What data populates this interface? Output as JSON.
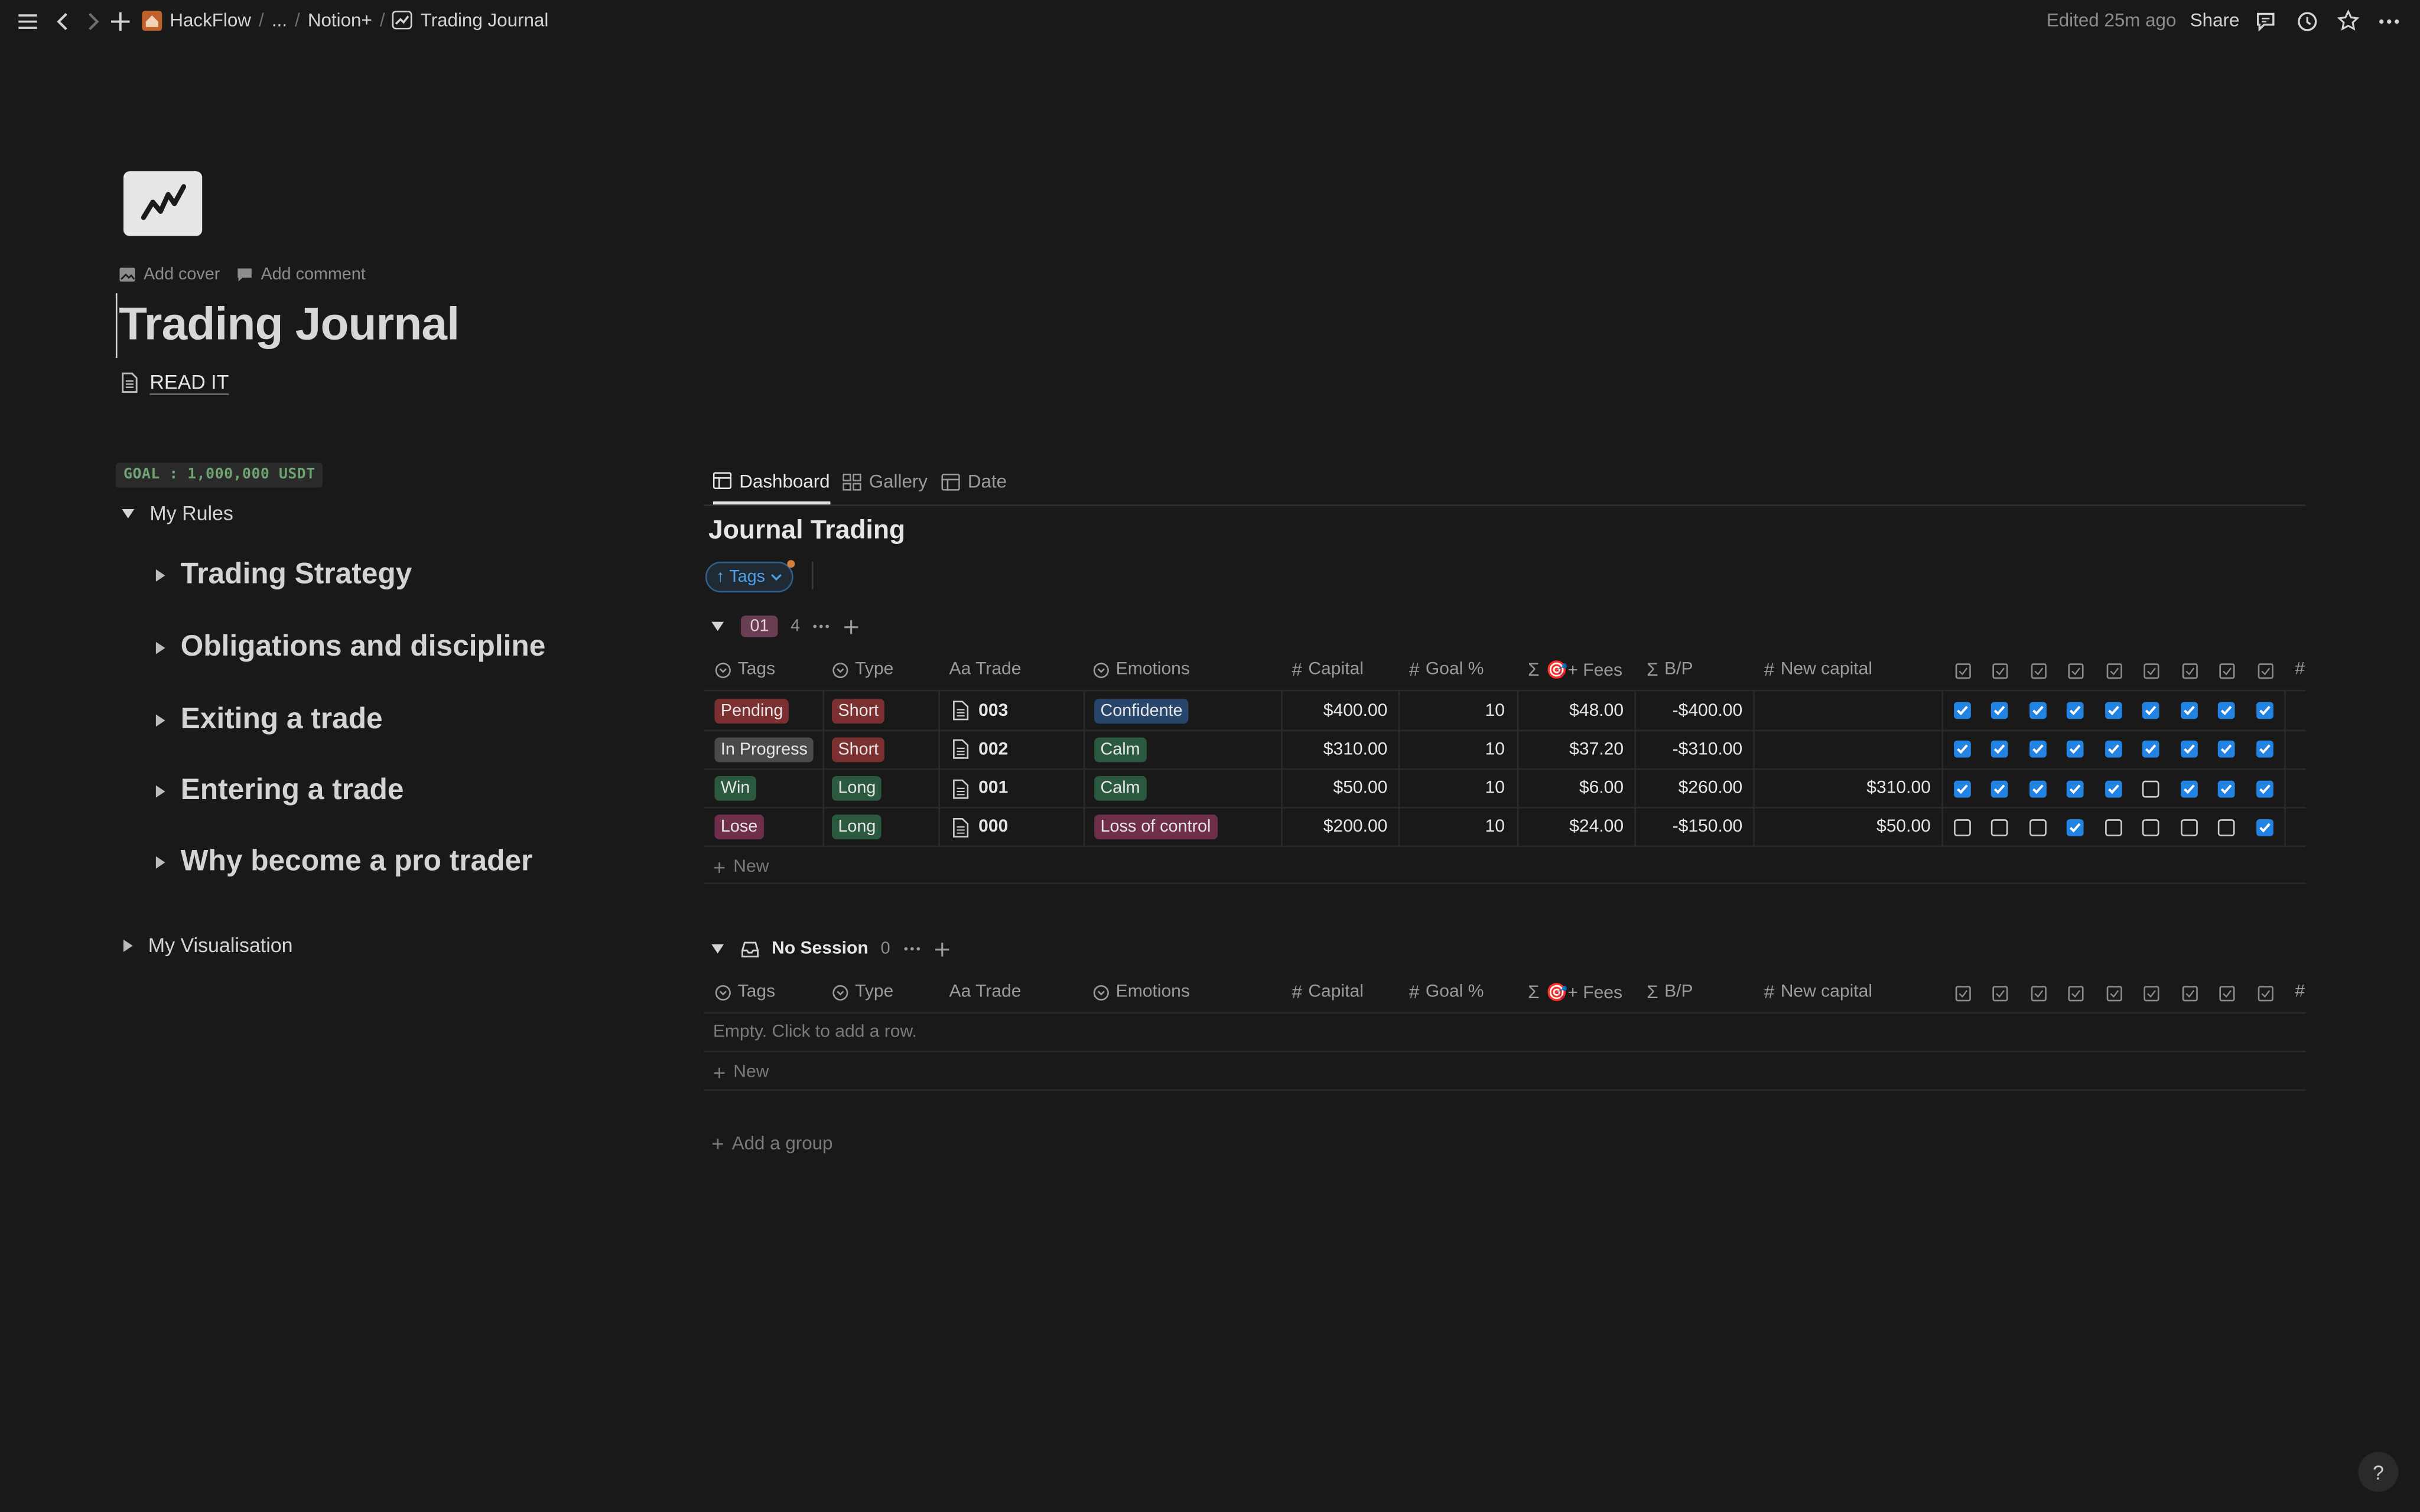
{
  "topbar": {
    "breadcrumb": [
      "HackFlow",
      "...",
      "Notion+",
      "Trading Journal"
    ],
    "edited": "Edited 25m ago",
    "share": "Share"
  },
  "page": {
    "add_cover": "Add cover",
    "add_comment": "Add comment",
    "title": "Trading Journal",
    "read_it": "READ IT"
  },
  "left": {
    "goal": "GOAL : 1,000,000 USDT",
    "my_rules": "My Rules",
    "rules": [
      "Trading Strategy",
      "Obligations and discipline",
      "Exiting a trade",
      "Entering a trade",
      "Why become a pro trader"
    ],
    "my_visualisation": "My Visualisation"
  },
  "tabs": [
    "Dashboard",
    "Gallery",
    "Date"
  ],
  "database": {
    "title": "Journal Trading",
    "filter_label": "Tags",
    "columns": [
      "Tags",
      "Type",
      "Aa Trade",
      "Emotions",
      "Capital",
      "Goal %",
      "🎯+ Fees",
      "B/P",
      "New capital",
      "#"
    ],
    "groups": [
      {
        "name": "01",
        "count": "4",
        "rows": [
          {
            "tag": "Pending",
            "tag_color": "#7b2f2f",
            "type": "Short",
            "type_color": "#7b2f2f",
            "trade": "003",
            "emotion": "Confidente",
            "emotion_color": "#28456c",
            "capital": "$400.00",
            "goal": "10",
            "fees": "$48.00",
            "bp": "-$400.00",
            "new_capital": "",
            "checks": [
              1,
              1,
              1,
              1,
              1,
              1,
              1,
              1,
              1
            ]
          },
          {
            "tag": "In Progress",
            "tag_color": "#4a4a4a",
            "type": "Short",
            "type_color": "#7b2f2f",
            "trade": "002",
            "emotion": "Calm",
            "emotion_color": "#2b593f",
            "capital": "$310.00",
            "goal": "10",
            "fees": "$37.20",
            "bp": "-$310.00",
            "new_capital": "",
            "checks": [
              1,
              1,
              1,
              1,
              1,
              1,
              1,
              1,
              1
            ]
          },
          {
            "tag": "Win",
            "tag_color": "#2b593f",
            "type": "Long",
            "type_color": "#2b593f",
            "trade": "001",
            "emotion": "Calm",
            "emotion_color": "#2b593f",
            "capital": "$50.00",
            "goal": "10",
            "fees": "$6.00",
            "bp": "$260.00",
            "new_capital": "$310.00",
            "checks": [
              1,
              1,
              1,
              1,
              1,
              0,
              1,
              1,
              1
            ]
          },
          {
            "tag": "Lose",
            "tag_color": "#6e2e4c",
            "type": "Long",
            "type_color": "#2b593f",
            "trade": "000",
            "emotion": "Loss of control",
            "emotion_color": "#6e2e4c",
            "capital": "$200.00",
            "goal": "10",
            "fees": "$24.00",
            "bp": "-$150.00",
            "new_capital": "$50.00",
            "checks": [
              0,
              0,
              0,
              1,
              0,
              0,
              0,
              0,
              1
            ]
          }
        ],
        "new_label": "New"
      },
      {
        "name": "No Session",
        "count": "0",
        "empty_text": "Empty. Click to add a row.",
        "new_label": "New"
      }
    ],
    "add_group": "Add a group"
  },
  "help": "?"
}
